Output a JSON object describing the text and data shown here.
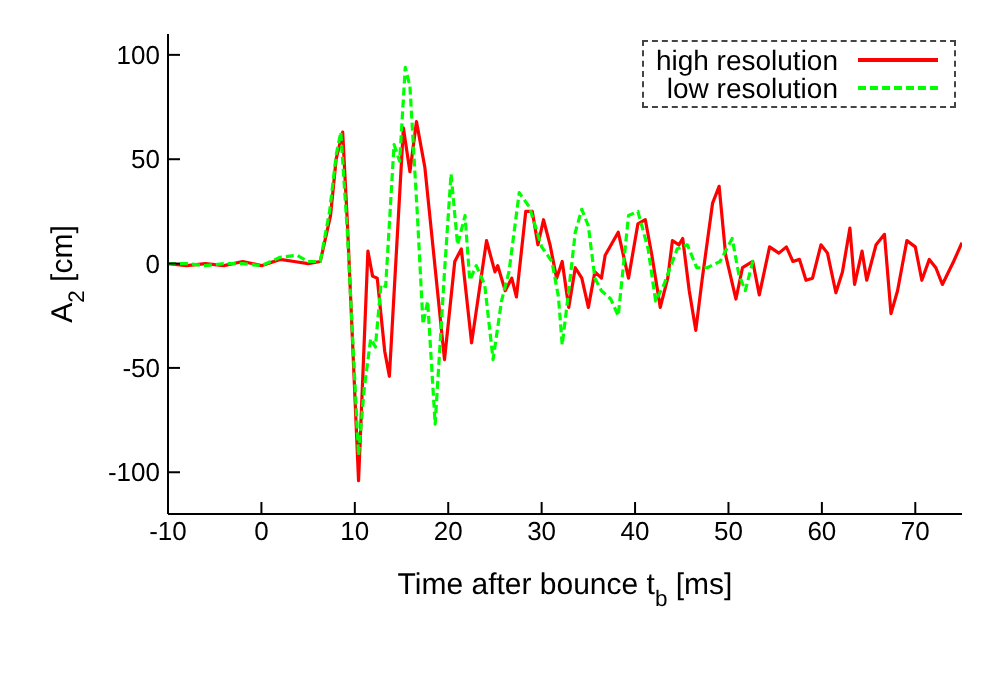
{
  "chart_data": {
    "type": "line",
    "xlabel": "Time after bounce t$_{b}$ [ms]",
    "ylabel": "A$_{2}$ [cm]",
    "xlim": [
      -10,
      75
    ],
    "xticks": [
      -10,
      0,
      10,
      20,
      30,
      40,
      50,
      60,
      70
    ],
    "ylim": [
      -120,
      110
    ],
    "yticks": [
      -100,
      -50,
      0,
      50,
      100
    ],
    "grid": false,
    "legend": "top right",
    "marker": "none",
    "series": [
      {
        "name": "high resolution",
        "color": "#ff0000",
        "line_style": "solid",
        "x": [
          -10,
          -8,
          -6,
          -4,
          -2,
          0,
          2,
          3.5,
          5,
          6.3,
          7.4,
          8,
          8.7,
          9.2,
          10.4,
          11.4,
          11.9,
          12.4,
          13.2,
          13.7,
          15.2,
          15.9,
          16.6,
          17.5,
          19.6,
          20.7,
          21.4,
          22.5,
          24.1,
          25,
          25.3,
          26.1,
          26.8,
          27.3,
          28.3,
          29,
          29.6,
          30.2,
          30.9,
          31.6,
          32.2,
          32.9,
          33.6,
          34.3,
          35,
          35.7,
          36.4,
          36.8,
          38.2,
          39.3,
          40.3,
          41.1,
          41.8,
          42.7,
          43.5,
          44,
          44.7,
          45.1,
          45.8,
          46.5,
          47.2,
          48.3,
          49,
          49.7,
          50.8,
          51.5,
          52.6,
          53.3,
          54.4,
          55.4,
          56.2,
          56.9,
          57.6,
          58.3,
          59,
          59.9,
          60.6,
          61.5,
          62.2,
          63,
          63.5,
          64.3,
          64.8,
          65.8,
          66.7,
          67.4,
          68.1,
          69.1,
          70,
          70.7,
          71.5,
          72.2,
          72.9,
          74.1,
          75
        ],
        "values": [
          0,
          -1,
          0,
          -1,
          1,
          -1,
          2,
          1,
          0,
          1,
          23,
          50,
          63,
          20,
          -104,
          6,
          -6,
          -7,
          -42,
          -54,
          65,
          44,
          68,
          46,
          -46,
          1,
          7,
          -38,
          11,
          -4,
          -1,
          -13,
          -7,
          -16,
          25,
          25,
          9,
          21,
          9,
          -7,
          1,
          -21,
          -2,
          -7,
          -21,
          -4,
          -7,
          4,
          15,
          -7,
          19,
          21,
          4,
          -21,
          -7,
          11,
          9,
          12,
          -13,
          -32,
          -7,
          29,
          37,
          4,
          -17,
          -2,
          1,
          -15,
          8,
          5,
          8,
          1,
          2,
          -8,
          -7,
          9,
          5,
          -14,
          -4,
          17,
          -10,
          6,
          -8,
          9,
          14,
          -24,
          -13,
          11,
          8,
          -8,
          2,
          -2,
          -10,
          1,
          10
        ]
      },
      {
        "name": "low resolution",
        "color": "#00ff00",
        "line_style": "dashed",
        "x": [
          -10,
          -8,
          -6,
          -4,
          -2,
          0,
          2,
          3.8,
          5,
          6.3,
          7.3,
          8,
          8.5,
          9.2,
          10.4,
          11,
          11.7,
          12.2,
          12.8,
          13.3,
          14.2,
          14.8,
          15.4,
          15.9,
          16.7,
          17.3,
          17.8,
          18.6,
          19.6,
          20.3,
          21,
          21.8,
          22.3,
          23,
          23.9,
          24.8,
          25.7,
          26.5,
          27.6,
          28.7,
          30,
          31.1,
          31.8,
          32.2,
          32.9,
          33.6,
          34.3,
          35,
          35.7,
          36.4,
          37.4,
          38.2,
          39.3,
          40.3,
          41.4,
          42.2,
          43.1,
          44.5,
          45.6,
          46.6,
          47.7,
          49.1,
          50.4,
          51.1,
          51.8,
          52.6,
          53
        ],
        "values": [
          0,
          0,
          -1,
          0,
          0,
          -1,
          3,
          4,
          1,
          1,
          25,
          52,
          63,
          15,
          -92,
          -60,
          -36,
          -40,
          -10,
          -11,
          57,
          49,
          94,
          85,
          23,
          -29,
          -18,
          -77,
          -4,
          43,
          9,
          23,
          -8,
          -1,
          -10,
          -46,
          -18,
          -4,
          34,
          27,
          8,
          1,
          -16,
          -39,
          -13,
          15,
          26,
          18,
          -7,
          -13,
          -17,
          -25,
          23,
          25,
          7,
          -18,
          -10,
          7,
          9,
          -2,
          -2,
          1,
          12,
          -5,
          -13,
          1,
          1
        ]
      }
    ]
  }
}
